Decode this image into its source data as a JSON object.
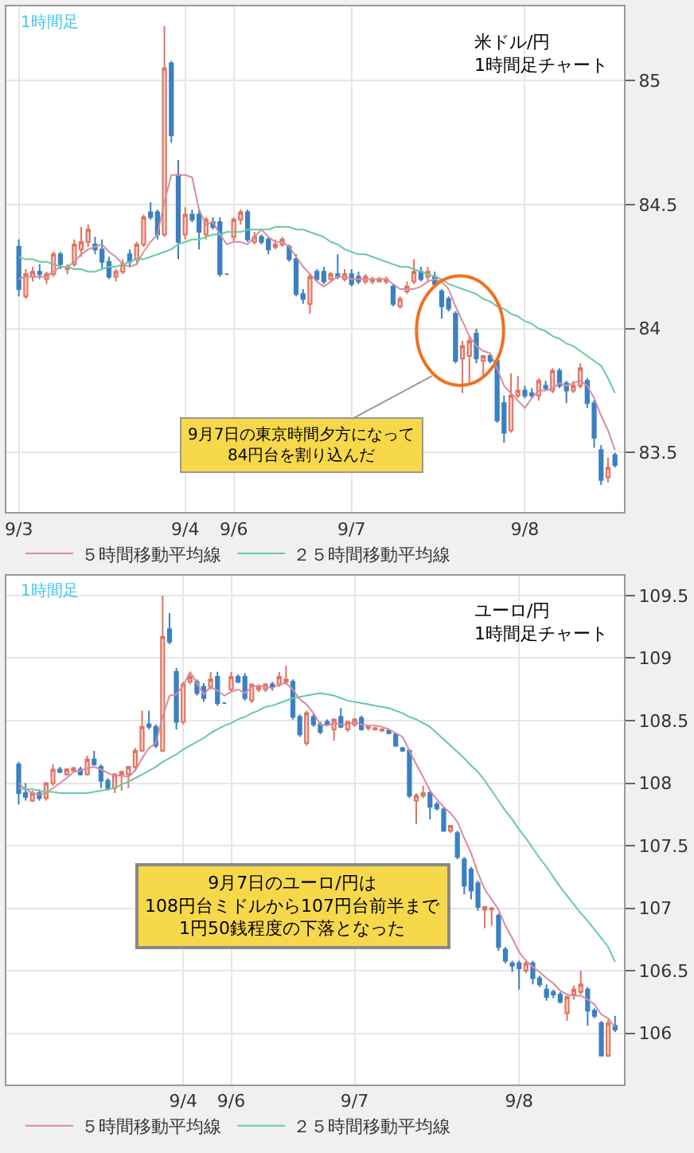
{
  "chart_data": [
    {
      "type": "candlestick",
      "title": "米ドル/円\n1時間足チャート",
      "annotations": [
        "1時間足",
        "9月7日の東京時間夕方になって\n84円台を割り込んだ"
      ],
      "categories": [
        "9/3",
        null,
        null,
        null,
        null,
        null,
        null,
        null,
        null,
        null,
        null,
        null,
        null,
        null,
        null,
        null,
        null,
        null,
        null,
        null,
        null,
        null,
        null,
        null,
        "9/4",
        null,
        null,
        null,
        null,
        null,
        null,
        "9/6",
        null,
        null,
        null,
        null,
        null,
        null,
        null,
        null,
        null,
        null,
        null,
        null,
        null,
        null,
        null,
        null,
        "9/7",
        null,
        null,
        null,
        null,
        null,
        null,
        null,
        null,
        null,
        null,
        null,
        null,
        null,
        null,
        null,
        null,
        null,
        null,
        null,
        null,
        null,
        null,
        null,
        null,
        "9/8",
        null,
        null,
        null,
        null,
        null,
        null,
        null,
        null,
        null,
        null,
        null,
        null,
        null
      ],
      "ohlc": [
        [
          84.33,
          84.36,
          84.13,
          84.16
        ],
        [
          84.13,
          84.24,
          84.12,
          84.22
        ],
        [
          84.21,
          84.25,
          84.19,
          84.23
        ],
        [
          84.23,
          84.26,
          84.2,
          84.22
        ],
        [
          84.2,
          84.23,
          84.18,
          84.22
        ],
        [
          84.22,
          84.31,
          84.21,
          84.3
        ],
        [
          84.3,
          84.31,
          84.24,
          84.26
        ],
        [
          84.24,
          84.26,
          84.22,
          84.25
        ],
        [
          84.26,
          84.36,
          84.25,
          84.34
        ],
        [
          84.32,
          84.41,
          84.29,
          84.35
        ],
        [
          84.35,
          84.42,
          84.33,
          84.4
        ],
        [
          84.34,
          84.37,
          84.3,
          84.32
        ],
        [
          84.32,
          84.36,
          84.24,
          84.27
        ],
        [
          84.27,
          84.29,
          84.2,
          84.21
        ],
        [
          84.21,
          84.24,
          84.19,
          84.23
        ],
        [
          84.23,
          84.28,
          84.22,
          84.26
        ],
        [
          84.3,
          84.32,
          84.25,
          84.27
        ],
        [
          84.28,
          84.35,
          84.26,
          84.34
        ],
        [
          84.34,
          84.46,
          84.33,
          84.45
        ],
        [
          84.47,
          84.51,
          84.44,
          84.45
        ],
        [
          84.47,
          84.48,
          84.36,
          84.38
        ],
        [
          84.38,
          85.22,
          84.37,
          85.05
        ],
        [
          85.07,
          85.08,
          84.75,
          84.78
        ],
        [
          84.62,
          84.68,
          84.28,
          84.35
        ],
        [
          84.38,
          84.49,
          84.36,
          84.46
        ],
        [
          84.46,
          84.48,
          84.43,
          84.44
        ],
        [
          84.46,
          84.48,
          84.32,
          84.39
        ],
        [
          84.38,
          84.45,
          84.36,
          84.44
        ],
        [
          84.43,
          84.45,
          84.4,
          84.41
        ],
        [
          84.43,
          84.45,
          84.21,
          84.22
        ],
        [
          84.22,
          84.22,
          84.22,
          84.22
        ],
        [
          84.37,
          84.45,
          84.35,
          84.44
        ],
        [
          84.44,
          84.48,
          84.42,
          84.47
        ],
        [
          84.47,
          84.48,
          84.35,
          84.36
        ],
        [
          84.35,
          84.39,
          84.34,
          84.37
        ],
        [
          84.37,
          84.38,
          84.34,
          84.35
        ],
        [
          84.36,
          84.37,
          84.3,
          84.32
        ],
        [
          84.33,
          84.36,
          84.32,
          84.34
        ],
        [
          84.34,
          84.37,
          84.33,
          84.36
        ],
        [
          84.33,
          84.34,
          84.27,
          84.28
        ],
        [
          84.28,
          84.3,
          84.13,
          84.14
        ],
        [
          84.14,
          84.16,
          84.1,
          84.12
        ],
        [
          84.1,
          84.22,
          84.06,
          84.21
        ],
        [
          84.23,
          84.24,
          84.19,
          84.2
        ],
        [
          84.23,
          84.25,
          84.18,
          84.19
        ],
        [
          84.2,
          84.23,
          84.19,
          84.22
        ],
        [
          84.22,
          84.3,
          84.2,
          84.21
        ],
        [
          84.2,
          84.24,
          84.19,
          84.22
        ],
        [
          84.22,
          84.24,
          84.17,
          84.18
        ],
        [
          84.21,
          84.23,
          84.18,
          84.19
        ],
        [
          84.19,
          84.22,
          84.18,
          84.21
        ],
        [
          84.19,
          84.21,
          84.18,
          84.2
        ],
        [
          84.19,
          84.21,
          84.19,
          84.2
        ],
        [
          84.19,
          84.21,
          84.18,
          84.2
        ],
        [
          84.17,
          84.18,
          84.09,
          84.1
        ],
        [
          84.09,
          84.13,
          84.08,
          84.12
        ],
        [
          84.15,
          84.19,
          84.14,
          84.17
        ],
        [
          84.19,
          84.28,
          84.18,
          84.23
        ],
        [
          84.23,
          84.25,
          84.19,
          84.2
        ],
        [
          84.21,
          84.25,
          84.19,
          84.23
        ],
        [
          84.21,
          84.23,
          84.17,
          84.18
        ],
        [
          84.15,
          84.16,
          84.04,
          84.09
        ],
        [
          84.12,
          84.13,
          84.07,
          84.08
        ],
        [
          84.06,
          84.07,
          83.86,
          83.87
        ],
        [
          83.88,
          83.95,
          83.74,
          83.93
        ],
        [
          83.89,
          83.97,
          83.78,
          83.95
        ],
        [
          83.98,
          84.0,
          83.86,
          83.88
        ],
        [
          83.87,
          83.89,
          83.8,
          83.89
        ],
        [
          83.89,
          83.9,
          83.86,
          83.87
        ],
        [
          83.87,
          83.88,
          83.62,
          83.63
        ],
        [
          83.7,
          83.73,
          83.54,
          83.58
        ],
        [
          83.59,
          83.82,
          83.58,
          83.73
        ],
        [
          83.73,
          83.81,
          83.72,
          83.75
        ],
        [
          83.75,
          83.77,
          83.72,
          83.73
        ],
        [
          83.74,
          83.76,
          83.72,
          83.73
        ],
        [
          83.73,
          83.8,
          83.71,
          83.79
        ],
        [
          83.77,
          83.79,
          83.75,
          83.76
        ],
        [
          83.75,
          83.84,
          83.74,
          83.83
        ],
        [
          83.83,
          83.84,
          83.76,
          83.77
        ],
        [
          83.78,
          83.79,
          83.7,
          83.75
        ],
        [
          83.75,
          83.79,
          83.74,
          83.77
        ],
        [
          83.77,
          83.86,
          83.76,
          83.84
        ],
        [
          83.79,
          83.8,
          83.68,
          83.7
        ],
        [
          83.7,
          83.71,
          83.52,
          83.56
        ],
        [
          83.51,
          83.53,
          83.37,
          83.39
        ],
        [
          83.4,
          83.48,
          83.38,
          83.44
        ],
        [
          83.49,
          83.5,
          83.44,
          83.45
        ]
      ],
      "series": [
        {
          "name": "５時間移動平均線",
          "type": "line",
          "color": "#d88ca0",
          "values": [
            84.2,
            84.21,
            84.21,
            84.21,
            84.21,
            84.23,
            84.25,
            84.25,
            84.27,
            84.3,
            84.32,
            84.33,
            84.34,
            84.31,
            84.29,
            84.26,
            84.25,
            84.26,
            84.31,
            84.35,
            84.38,
            84.51,
            84.62,
            84.62,
            84.62,
            84.61,
            84.48,
            84.42,
            84.43,
            84.38,
            84.34,
            84.35,
            84.35,
            84.34,
            84.37,
            84.4,
            84.37,
            84.35,
            84.35,
            84.33,
            84.29,
            84.25,
            84.22,
            84.19,
            84.17,
            84.19,
            84.21,
            84.21,
            84.2,
            84.2,
            84.2,
            84.2,
            84.2,
            84.2,
            84.18,
            84.16,
            84.16,
            84.16,
            84.17,
            84.19,
            84.2,
            84.19,
            84.16,
            84.09,
            84.03,
            83.97,
            83.93,
            83.91,
            83.9,
            83.84,
            83.77,
            83.74,
            83.71,
            83.68,
            83.72,
            83.75,
            83.75,
            83.76,
            83.78,
            83.77,
            83.78,
            83.79,
            83.77,
            83.72,
            83.65,
            83.59,
            83.51
          ]
        },
        {
          "name": "２５時間移動平均線",
          "type": "line",
          "color": "#66cc99",
          "values": [
            84.29,
            84.28,
            84.28,
            84.27,
            84.27,
            84.26,
            84.25,
            84.25,
            84.24,
            84.24,
            84.23,
            84.23,
            84.24,
            84.25,
            84.25,
            84.26,
            84.27,
            84.28,
            84.28,
            84.29,
            84.3,
            84.31,
            84.32,
            84.34,
            84.35,
            84.36,
            84.36,
            84.37,
            84.38,
            84.38,
            84.39,
            84.39,
            84.39,
            84.4,
            84.4,
            84.4,
            84.4,
            84.41,
            84.41,
            84.41,
            84.4,
            84.4,
            84.39,
            84.38,
            84.37,
            84.35,
            84.34,
            84.32,
            84.31,
            84.3,
            84.3,
            84.29,
            84.28,
            84.27,
            84.26,
            84.25,
            84.25,
            84.24,
            84.23,
            84.22,
            84.21,
            84.2,
            84.18,
            84.17,
            84.16,
            84.15,
            84.14,
            84.12,
            84.11,
            84.09,
            84.08,
            84.06,
            84.05,
            84.03,
            84.02,
            84.0,
            83.99,
            83.97,
            83.96,
            83.94,
            83.93,
            83.91,
            83.89,
            83.87,
            83.85,
            83.8,
            83.74
          ]
        }
      ],
      "ylim": [
        83.26,
        85.3
      ],
      "yticks": [
        83.5,
        84,
        84.5,
        85
      ],
      "grid": true,
      "legend": "bottom"
    },
    {
      "type": "candlestick",
      "title": "ユーロ/円\n1時間足チャート",
      "annotations": [
        "1時間足",
        "9月7日のユーロ/円は\n108円台ミドルから107円台前半まで\n1円50銭程度の下落となった"
      ],
      "categories": [
        null,
        null,
        null,
        null,
        null,
        null,
        null,
        null,
        null,
        null,
        null,
        null,
        null,
        null,
        null,
        null,
        null,
        null,
        null,
        null,
        null,
        null,
        null,
        null,
        "9/4",
        null,
        null,
        null,
        null,
        null,
        null,
        "9/6",
        null,
        null,
        null,
        null,
        null,
        null,
        null,
        null,
        null,
        null,
        null,
        null,
        null,
        null,
        null,
        null,
        null,
        "9/7",
        null,
        null,
        null,
        null,
        null,
        null,
        null,
        null,
        null,
        null,
        null,
        null,
        null,
        null,
        null,
        null,
        null,
        null,
        null,
        null,
        null,
        null,
        null,
        "9/8",
        null,
        null,
        null,
        null,
        null,
        null,
        null,
        null,
        null,
        null,
        null,
        null,
        null,
        null
      ],
      "ohlc": [
        [
          108.15,
          108.17,
          107.83,
          107.92
        ],
        [
          107.92,
          108.0,
          107.86,
          107.89
        ],
        [
          107.86,
          107.94,
          107.85,
          107.92
        ],
        [
          107.92,
          107.95,
          107.86,
          107.88
        ],
        [
          107.88,
          108.0,
          107.86,
          108.0
        ],
        [
          108.0,
          108.15,
          107.98,
          108.11
        ],
        [
          108.11,
          108.13,
          108.08,
          108.09
        ],
        [
          108.07,
          108.12,
          108.06,
          108.11
        ],
        [
          108.1,
          108.13,
          108.09,
          108.12
        ],
        [
          108.11,
          108.13,
          108.06,
          108.07
        ],
        [
          108.07,
          108.22,
          108.06,
          108.19
        ],
        [
          108.19,
          108.26,
          108.14,
          108.15
        ],
        [
          108.13,
          108.15,
          107.96,
          108.02
        ],
        [
          108.02,
          108.04,
          107.94,
          107.96
        ],
        [
          107.96,
          108.08,
          107.92,
          108.07
        ],
        [
          108.07,
          108.1,
          107.94,
          108.09
        ],
        [
          108.07,
          108.13,
          107.96,
          108.13
        ],
        [
          108.13,
          108.28,
          108.11,
          108.26
        ],
        [
          108.26,
          108.58,
          108.25,
          108.45
        ],
        [
          108.47,
          108.58,
          108.43,
          108.45
        ],
        [
          108.45,
          108.47,
          108.28,
          108.3
        ],
        [
          108.26,
          109.5,
          108.25,
          109.17
        ],
        [
          109.23,
          109.36,
          109.11,
          109.13
        ],
        [
          108.89,
          108.92,
          108.43,
          108.49
        ],
        [
          108.49,
          108.81,
          108.47,
          108.79
        ],
        [
          108.81,
          108.87,
          108.79,
          108.85
        ],
        [
          108.81,
          108.83,
          108.7,
          108.72
        ],
        [
          108.77,
          108.8,
          108.65,
          108.68
        ],
        [
          108.77,
          108.89,
          108.75,
          108.83
        ],
        [
          108.85,
          108.89,
          108.62,
          108.64
        ],
        [
          108.64,
          108.64,
          108.64,
          108.64
        ],
        [
          108.75,
          108.89,
          108.73,
          108.85
        ],
        [
          108.85,
          108.87,
          108.8,
          108.81
        ],
        [
          108.85,
          108.88,
          108.66,
          108.68
        ],
        [
          108.66,
          108.79,
          108.64,
          108.79
        ],
        [
          108.75,
          108.79,
          108.73,
          108.77
        ],
        [
          108.75,
          108.8,
          108.73,
          108.79
        ],
        [
          108.79,
          108.81,
          108.74,
          108.77
        ],
        [
          108.79,
          108.89,
          108.77,
          108.85
        ],
        [
          108.81,
          108.94,
          108.79,
          108.83
        ],
        [
          108.81,
          108.83,
          108.51,
          108.53
        ],
        [
          108.53,
          108.55,
          108.37,
          108.39
        ],
        [
          108.32,
          108.58,
          108.3,
          108.56
        ],
        [
          108.53,
          108.56,
          108.45,
          108.47
        ],
        [
          108.47,
          108.49,
          108.39,
          108.41
        ],
        [
          108.49,
          108.51,
          108.46,
          108.47
        ],
        [
          108.43,
          108.51,
          108.34,
          108.51
        ],
        [
          108.53,
          108.6,
          108.44,
          108.45
        ],
        [
          108.43,
          108.49,
          108.41,
          108.49
        ],
        [
          108.47,
          108.52,
          108.45,
          108.51
        ],
        [
          108.52,
          108.54,
          108.42,
          108.43
        ],
        [
          108.44,
          108.46,
          108.42,
          108.45
        ],
        [
          108.43,
          108.45,
          108.42,
          108.44
        ],
        [
          108.42,
          108.44,
          108.41,
          108.43
        ],
        [
          108.42,
          108.43,
          108.39,
          108.4
        ],
        [
          108.39,
          108.4,
          108.29,
          108.3
        ],
        [
          108.28,
          108.29,
          108.25,
          108.26
        ],
        [
          108.26,
          108.27,
          107.88,
          107.9
        ],
        [
          107.86,
          107.92,
          107.67,
          107.9
        ],
        [
          107.9,
          107.98,
          107.88,
          107.92
        ],
        [
          107.92,
          107.94,
          107.71,
          107.81
        ],
        [
          107.83,
          107.85,
          107.78,
          107.8
        ],
        [
          107.79,
          107.81,
          107.61,
          107.62
        ],
        [
          107.62,
          107.66,
          107.6,
          107.66
        ],
        [
          107.6,
          107.62,
          107.39,
          107.41
        ],
        [
          107.39,
          107.41,
          107.11,
          107.18
        ],
        [
          107.31,
          107.33,
          107.07,
          107.14
        ],
        [
          107.2,
          107.22,
          106.98,
          107.01
        ],
        [
          106.99,
          107.01,
          106.84,
          107.01
        ],
        [
          106.99,
          107.01,
          106.86,
          107.0
        ],
        [
          106.94,
          106.96,
          106.66,
          106.69
        ],
        [
          106.67,
          106.69,
          106.56,
          106.58
        ],
        [
          106.56,
          106.58,
          106.49,
          106.54
        ],
        [
          106.56,
          106.58,
          106.35,
          106.52
        ],
        [
          106.5,
          106.58,
          106.48,
          106.56
        ],
        [
          106.56,
          106.58,
          106.39,
          106.44
        ],
        [
          106.44,
          106.46,
          106.37,
          106.39
        ],
        [
          106.35,
          106.39,
          106.26,
          106.29
        ],
        [
          106.33,
          106.35,
          106.28,
          106.31
        ],
        [
          106.31,
          106.33,
          106.24,
          106.25
        ],
        [
          106.16,
          106.3,
          106.1,
          106.29
        ],
        [
          106.31,
          106.38,
          106.27,
          106.35
        ],
        [
          106.33,
          106.5,
          106.31,
          106.39
        ],
        [
          106.35,
          106.37,
          106.06,
          106.18
        ],
        [
          106.18,
          106.2,
          106.12,
          106.14
        ],
        [
          106.08,
          106.1,
          105.82,
          105.82
        ],
        [
          105.82,
          106.11,
          105.81,
          106.08
        ],
        [
          106.06,
          106.14,
          106.01,
          106.03
        ]
      ],
      "series": [
        {
          "name": "５時間移動平均線",
          "type": "line",
          "color": "#d88ca0",
          "values": [
            108.0,
            107.95,
            107.92,
            107.91,
            107.92,
            107.96,
            108.0,
            108.04,
            108.09,
            108.1,
            108.12,
            108.13,
            108.11,
            108.08,
            108.06,
            108.06,
            108.05,
            108.1,
            108.2,
            108.28,
            108.32,
            108.53,
            108.7,
            108.71,
            108.78,
            108.89,
            108.8,
            108.71,
            108.77,
            108.74,
            108.7,
            108.73,
            108.75,
            108.72,
            108.77,
            108.78,
            108.77,
            108.76,
            108.79,
            108.8,
            108.75,
            108.67,
            108.63,
            108.56,
            108.47,
            108.46,
            108.48,
            108.47,
            108.47,
            108.49,
            108.47,
            108.46,
            108.46,
            108.45,
            108.43,
            108.4,
            108.37,
            108.26,
            108.15,
            108.05,
            107.94,
            107.87,
            107.81,
            107.76,
            107.69,
            107.56,
            107.44,
            107.28,
            107.15,
            107.07,
            106.99,
            106.86,
            106.76,
            106.65,
            106.58,
            106.53,
            106.49,
            106.44,
            106.4,
            106.34,
            106.31,
            106.3,
            106.3,
            106.27,
            106.23,
            106.15,
            106.12,
            106.05
          ]
        },
        {
          "name": "２５時間移動平均線",
          "type": "line",
          "color": "#66cc99",
          "values": [
            107.96,
            107.95,
            107.95,
            107.94,
            107.93,
            107.93,
            107.92,
            107.92,
            107.92,
            107.92,
            107.92,
            107.93,
            107.94,
            107.95,
            107.96,
            107.99,
            108.01,
            108.04,
            108.07,
            108.1,
            108.13,
            108.17,
            108.2,
            108.23,
            108.27,
            108.3,
            108.33,
            108.36,
            108.4,
            108.43,
            108.46,
            108.48,
            108.51,
            108.53,
            108.56,
            108.58,
            108.61,
            108.62,
            108.64,
            108.66,
            108.68,
            108.69,
            108.7,
            108.71,
            108.72,
            108.71,
            108.7,
            108.68,
            108.66,
            108.65,
            108.64,
            108.63,
            108.62,
            108.61,
            108.6,
            108.58,
            108.56,
            108.53,
            108.51,
            108.48,
            108.45,
            108.4,
            108.35,
            108.3,
            108.25,
            108.2,
            108.14,
            108.09,
            108.02,
            107.94,
            107.86,
            107.78,
            107.71,
            107.63,
            107.56,
            107.48,
            107.4,
            107.33,
            107.25,
            107.17,
            107.1,
            107.03,
            106.96,
            106.9,
            106.83,
            106.76,
            106.69,
            106.57
          ]
        }
      ],
      "ylim": [
        105.59,
        109.66
      ],
      "yticks": [
        106,
        106.5,
        107,
        107.5,
        108,
        108.5,
        109,
        109.5
      ],
      "grid": true,
      "legend": "bottom"
    }
  ]
}
